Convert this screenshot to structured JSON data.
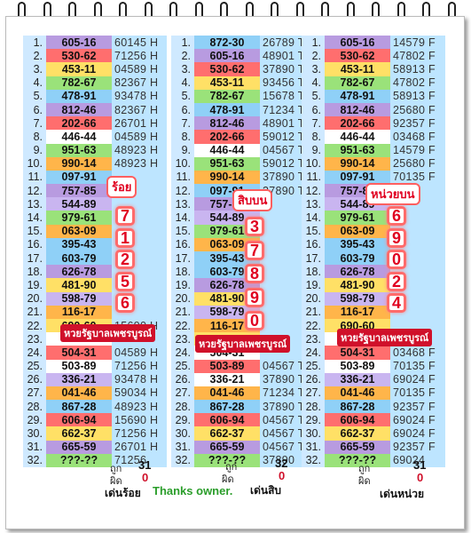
{
  "col1": {
    "rows": [
      {
        "n": "1.",
        "pair": "605-16",
        "res": "60145 H",
        "hi": "",
        "c": "c-purple"
      },
      {
        "n": "2.",
        "pair": "530-62",
        "res": "71256 H",
        "hi": "",
        "c": "c-red"
      },
      {
        "n": "3.",
        "pair": "453-11",
        "res": "04589 H",
        "hi": "",
        "c": "c-yellow"
      },
      {
        "n": "4.",
        "pair": "782-67",
        "res": "82367 H",
        "hi": "",
        "c": "c-green"
      },
      {
        "n": "5.",
        "pair": "478-91",
        "res": "93478 H",
        "hi": "",
        "c": "c-blue"
      },
      {
        "n": "6.",
        "pair": "812-46",
        "res": "82367 H",
        "hi": "",
        "c": "c-purple"
      },
      {
        "n": "7.",
        "pair": "202-66",
        "res": "26701 H",
        "hi": "",
        "c": "c-red"
      },
      {
        "n": "8.",
        "pair": "446-44",
        "res": "04589 H",
        "hi": "",
        "c": "c-white"
      },
      {
        "n": "9.",
        "pair": "951-63",
        "res": "48923 H",
        "hi": "",
        "c": "c-green"
      },
      {
        "n": "10.",
        "pair": "990-14",
        "res": "48923 H",
        "hi": "",
        "c": "c-orange"
      },
      {
        "n": "11.",
        "pair": "097-91",
        "res": "",
        "hi": "",
        "c": "c-blue"
      },
      {
        "n": "12.",
        "pair": "757-85",
        "res": "",
        "hi": "",
        "c": "c-purple"
      },
      {
        "n": "13.",
        "pair": "544-89",
        "res": "",
        "hi": "",
        "c": "c-lavender"
      },
      {
        "n": "14.",
        "pair": "979-61",
        "res": "",
        "hi": "",
        "c": "c-green"
      },
      {
        "n": "15.",
        "pair": "063-09",
        "res": "",
        "hi": "",
        "c": "c-orange"
      },
      {
        "n": "16.",
        "pair": "395-43",
        "res": "",
        "hi": "",
        "c": "c-blue"
      },
      {
        "n": "17.",
        "pair": "603-79",
        "res": "",
        "hi": "",
        "c": "c-blue"
      },
      {
        "n": "18.",
        "pair": "626-78",
        "res": "",
        "hi": "",
        "c": "c-purple"
      },
      {
        "n": "19.",
        "pair": "481-90",
        "res": "",
        "hi": "",
        "c": "c-yellow"
      },
      {
        "n": "20.",
        "pair": "598-79",
        "res": "",
        "hi": "",
        "c": "c-lavender"
      },
      {
        "n": "21.",
        "pair": "116-17",
        "res": "",
        "hi": "",
        "c": "c-orange"
      },
      {
        "n": "22.",
        "pair": "690-60",
        "res": "15690 H",
        "hi": "",
        "c": "c-yellow"
      },
      {
        "n": "23.",
        "pair": "",
        "res": "",
        "hi": "",
        "c": "c-white"
      },
      {
        "n": "24.",
        "pair": "504-31",
        "res": "04589 H",
        "hi": "",
        "c": "c-red"
      },
      {
        "n": "25.",
        "pair": "503-89",
        "res": "71256 H",
        "hi": "",
        "c": "c-white"
      },
      {
        "n": "26.",
        "pair": "336-21",
        "res": "93478 H",
        "hi": "",
        "c": "c-lavender"
      },
      {
        "n": "27.",
        "pair": "041-46",
        "res": "59034 H",
        "hi": "",
        "c": "c-orange"
      },
      {
        "n": "28.",
        "pair": "867-28",
        "res": "48923 H",
        "hi": "",
        "c": "c-blue"
      },
      {
        "n": "29.",
        "pair": "606-94",
        "res": "15690 H",
        "hi": "",
        "c": "c-red"
      },
      {
        "n": "30.",
        "pair": "662-37",
        "res": "71256 H",
        "hi": "",
        "c": "c-yellow"
      },
      {
        "n": "31.",
        "pair": "665-59",
        "res": "26701 H",
        "hi": "",
        "c": "c-purple"
      },
      {
        "n": "32.",
        "pair": "???-??",
        "res": "71256",
        "hi": "",
        "c": "c-green"
      }
    ],
    "correct_label": "ถูก",
    "wrong_label": "ผิด",
    "correct": "31",
    "wrong": "0",
    "caption": "เด่นร้อย"
  },
  "col2": {
    "rows": [
      {
        "n": "1.",
        "pair": "872-30",
        "res": "26789 T",
        "c": "c-blue"
      },
      {
        "n": "2.",
        "pair": "605-16",
        "res": "48901 T",
        "c": "c-purple"
      },
      {
        "n": "3.",
        "pair": "530-62",
        "res": "37890 T",
        "c": "c-red"
      },
      {
        "n": "4.",
        "pair": "453-11",
        "res": "93456 T",
        "c": "c-yellow"
      },
      {
        "n": "5.",
        "pair": "782-67",
        "res": "15678 T",
        "c": "c-green"
      },
      {
        "n": "6.",
        "pair": "478-91",
        "res": "71234 T",
        "c": "c-blue"
      },
      {
        "n": "7.",
        "pair": "812-46",
        "res": "48901 T",
        "c": "c-purple"
      },
      {
        "n": "8.",
        "pair": "202-66",
        "res": "59012 T",
        "c": "c-red"
      },
      {
        "n": "9.",
        "pair": "446-44",
        "res": "04567 T",
        "c": "c-white"
      },
      {
        "n": "10.",
        "pair": "951-63",
        "res": "59012 T",
        "c": "c-green"
      },
      {
        "n": "11.",
        "pair": "990-14",
        "res": "37890 T",
        "c": "c-orange"
      },
      {
        "n": "12.",
        "pair": "097-91",
        "res": "37890 T",
        "c": "c-blue"
      },
      {
        "n": "13.",
        "pair": "757-85",
        "res": "",
        "c": "c-purple"
      },
      {
        "n": "14.",
        "pair": "544-89",
        "res": "",
        "c": "c-lavender"
      },
      {
        "n": "15.",
        "pair": "979-61",
        "res": "",
        "c": "c-green"
      },
      {
        "n": "16.",
        "pair": "063-09",
        "res": "",
        "c": "c-orange"
      },
      {
        "n": "17.",
        "pair": "395-43",
        "res": "",
        "c": "c-blue"
      },
      {
        "n": "18.",
        "pair": "603-79",
        "res": "",
        "c": "c-blue"
      },
      {
        "n": "19.",
        "pair": "626-78",
        "res": "",
        "c": "c-purple"
      },
      {
        "n": "20.",
        "pair": "481-90",
        "res": "",
        "c": "c-yellow"
      },
      {
        "n": "21.",
        "pair": "598-79",
        "res": "",
        "c": "c-lavender"
      },
      {
        "n": "22.",
        "pair": "116-17",
        "res": "",
        "c": "c-orange"
      },
      {
        "n": "23.",
        "pair": "690-60",
        "res": "",
        "c": "c-yellow"
      },
      {
        "n": "24.",
        "pair": "504-31",
        "res": "",
        "c": "c-white"
      },
      {
        "n": "25.",
        "pair": "503-89",
        "res": "04567 T",
        "c": "c-red"
      },
      {
        "n": "26.",
        "pair": "336-21",
        "res": "37890 T",
        "c": "c-white"
      },
      {
        "n": "27.",
        "pair": "041-46",
        "res": "71234 T",
        "c": "c-orange"
      },
      {
        "n": "28.",
        "pair": "867-28",
        "res": "37890 T",
        "c": "c-blue"
      },
      {
        "n": "29.",
        "pair": "606-94",
        "res": "04567 T",
        "c": "c-red"
      },
      {
        "n": "30.",
        "pair": "662-37",
        "res": "04567 T",
        "c": "c-yellow"
      },
      {
        "n": "31.",
        "pair": "665-59",
        "res": "04567 T",
        "c": "c-purple"
      },
      {
        "n": "32.",
        "pair": "???-??",
        "res": "37890",
        "c": "c-green"
      }
    ],
    "correct_label": "ถูก",
    "wrong_label": "ผิด",
    "correct": "32",
    "wrong": "0",
    "caption": "เด่นสิบ"
  },
  "col3": {
    "rows": [
      {
        "n": "1.",
        "pair": "605-16",
        "res": "14579 F",
        "c": "c-purple"
      },
      {
        "n": "2.",
        "pair": "530-62",
        "res": "47802 F",
        "c": "c-red"
      },
      {
        "n": "3.",
        "pair": "453-11",
        "res": "58913 F",
        "c": "c-yellow"
      },
      {
        "n": "4.",
        "pair": "782-67",
        "res": "47802 F",
        "c": "c-green"
      },
      {
        "n": "5.",
        "pair": "478-91",
        "res": "58913 F",
        "c": "c-blue"
      },
      {
        "n": "6.",
        "pair": "812-46",
        "res": "25680 F",
        "c": "c-purple"
      },
      {
        "n": "7.",
        "pair": "202-66",
        "res": "92357 F",
        "c": "c-red"
      },
      {
        "n": "8.",
        "pair": "446-44",
        "res": "03468 F",
        "c": "c-white"
      },
      {
        "n": "9.",
        "pair": "951-63",
        "res": "14579 F",
        "c": "c-green"
      },
      {
        "n": "10.",
        "pair": "990-14",
        "res": "25680 F",
        "c": "c-orange"
      },
      {
        "n": "11.",
        "pair": "097-91",
        "res": "70135 F",
        "c": "c-blue"
      },
      {
        "n": "12.",
        "pair": "757-85",
        "res": "",
        "c": "c-purple"
      },
      {
        "n": "13.",
        "pair": "544-89",
        "res": "",
        "c": "c-lavender"
      },
      {
        "n": "14.",
        "pair": "979-61",
        "res": "",
        "c": "c-green"
      },
      {
        "n": "15.",
        "pair": "063-09",
        "res": "",
        "c": "c-orange"
      },
      {
        "n": "16.",
        "pair": "395-43",
        "res": "",
        "c": "c-blue"
      },
      {
        "n": "17.",
        "pair": "603-79",
        "res": "",
        "c": "c-blue"
      },
      {
        "n": "18.",
        "pair": "626-78",
        "res": "",
        "c": "c-purple"
      },
      {
        "n": "19.",
        "pair": "481-90",
        "res": "",
        "c": "c-yellow"
      },
      {
        "n": "20.",
        "pair": "598-79",
        "res": "",
        "c": "c-lavender"
      },
      {
        "n": "21.",
        "pair": "116-17",
        "res": "",
        "c": "c-orange"
      },
      {
        "n": "22.",
        "pair": "690-60",
        "res": "",
        "c": "c-yellow"
      },
      {
        "n": "23.",
        "pair": "",
        "res": "",
        "c": "c-white"
      },
      {
        "n": "24.",
        "pair": "504-31",
        "res": "03468 F",
        "c": "c-red"
      },
      {
        "n": "25.",
        "pair": "503-89",
        "res": "70135 F",
        "c": "c-white"
      },
      {
        "n": "26.",
        "pair": "336-21",
        "res": "69024 F",
        "c": "c-lavender"
      },
      {
        "n": "27.",
        "pair": "041-46",
        "res": "70135 F",
        "c": "c-orange"
      },
      {
        "n": "28.",
        "pair": "867-28",
        "res": "92357 F",
        "c": "c-blue"
      },
      {
        "n": "29.",
        "pair": "606-94",
        "res": "69024 F",
        "c": "c-red"
      },
      {
        "n": "30.",
        "pair": "662-37",
        "res": "69024 F",
        "c": "c-yellow"
      },
      {
        "n": "31.",
        "pair": "665-59",
        "res": "92357 F",
        "c": "c-purple"
      },
      {
        "n": "32.",
        "pair": "???-??",
        "res": "69024",
        "c": "c-green"
      }
    ],
    "correct_label": "ถูก",
    "wrong_label": "ผิด",
    "correct": "31",
    "wrong": "0",
    "caption": "เด่นหน่วย"
  },
  "overlay": {
    "hundreds_label": "ร้อย",
    "hundreds_digits": [
      "7",
      "1",
      "2",
      "5",
      "6"
    ],
    "tens_label": "สิบบน",
    "tens_digits": [
      "3",
      "7",
      "8",
      "9",
      "0"
    ],
    "units_label": "หน่วยบน",
    "units_digits": [
      "6",
      "9",
      "0",
      "2",
      "4"
    ],
    "stamp": "หวยรัฐบาลเพชรบูรณ์"
  },
  "thanks": "Thanks owner."
}
